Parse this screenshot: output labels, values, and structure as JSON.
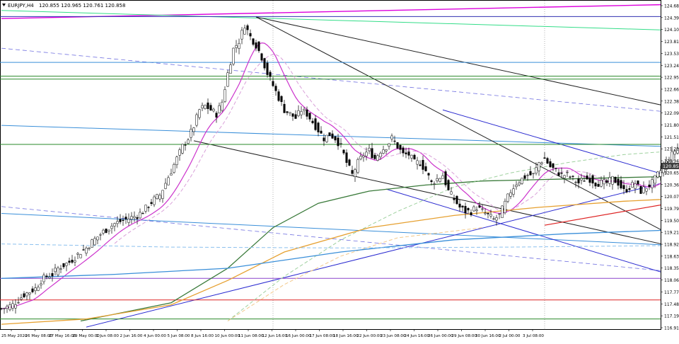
{
  "window": {
    "symbol_label": "EURJPY,H4",
    "ohlc_text": "120.855 120.965 120.761 120.858",
    "menu_icon": "triangle-down-icon"
  },
  "chart_data": {
    "type": "candlestick",
    "symbol": "EURJPY",
    "timeframe": "H4",
    "price_axis": {
      "ylim": [
        116.7,
        124.79
      ],
      "ticks": [
        "124.680",
        "124.395",
        "124.105",
        "123.815",
        "123.530",
        "123.240",
        "122.955",
        "122.665",
        "122.380",
        "122.090",
        "121.800",
        "121.515",
        "121.225",
        "120.940",
        "120.650",
        "120.365",
        "120.075",
        "119.790",
        "119.500",
        "119.210",
        "118.925",
        "118.635",
        "118.350",
        "118.060",
        "117.770",
        "117.480",
        "117.195",
        "116.910"
      ],
      "current_price": "120.858"
    },
    "time_axis": {
      "labels": [
        "25 May 2020",
        "26 May 08:00",
        "27 May 16:00",
        "29 May 00:00",
        "1 Jun 08:00",
        "2 Jun 16:00",
        "4 Jun 00:00",
        "5 Jun 08:00",
        "8 Jun 16:00",
        "10 Jun 00:00",
        "11 Jun 08:00",
        "12 Jun 16:00",
        "16 Jun 00:00",
        "17 Jun 08:00",
        "18 Jun 16:00",
        "22 Jun 00:00",
        "23 Jun 08:00",
        "24 Jun 16:00",
        "26 Jun 00:00",
        "29 Jun 08:00",
        "30 Jun 16:00",
        "2 Jul 00:00",
        "3 Jul 08:00"
      ]
    },
    "candles": {
      "bar_spacing": 4,
      "up_color": "#ffffff",
      "down_color": "#000000",
      "close_path": [
        [
          0,
          117.2
        ],
        [
          4,
          117.3
        ],
        [
          8,
          117.55
        ],
        [
          12,
          117.7
        ],
        [
          14,
          117.9
        ],
        [
          16,
          118.0
        ],
        [
          18,
          118.05
        ],
        [
          20,
          118.2
        ],
        [
          24,
          118.35
        ],
        [
          28,
          118.6
        ],
        [
          30,
          118.7
        ],
        [
          32,
          118.85
        ],
        [
          36,
          119.1
        ],
        [
          40,
          119.3
        ],
        [
          44,
          119.4
        ],
        [
          48,
          119.5
        ],
        [
          50,
          119.6
        ],
        [
          52,
          119.75
        ],
        [
          54,
          119.9
        ],
        [
          56,
          120.0
        ],
        [
          60,
          120.6
        ],
        [
          64,
          121.2
        ],
        [
          66,
          121.4
        ],
        [
          68,
          121.7
        ],
        [
          70,
          122.1
        ],
        [
          72,
          122.2
        ],
        [
          74,
          122.1
        ],
        [
          76,
          122.0
        ],
        [
          78,
          122.3
        ],
        [
          80,
          123.0
        ],
        [
          82,
          123.6
        ],
        [
          84,
          123.8
        ],
        [
          86,
          124.2
        ],
        [
          88,
          123.9
        ],
        [
          90,
          123.7
        ],
        [
          92,
          123.4
        ],
        [
          94,
          123.0
        ],
        [
          96,
          122.7
        ],
        [
          98,
          122.4
        ],
        [
          100,
          122.1
        ],
        [
          102,
          122.0
        ],
        [
          104,
          121.9
        ],
        [
          106,
          122.1
        ],
        [
          108,
          122.0
        ],
        [
          110,
          121.8
        ],
        [
          112,
          121.6
        ],
        [
          114,
          121.4
        ],
        [
          116,
          121.5
        ],
        [
          118,
          121.4
        ],
        [
          120,
          121.2
        ],
        [
          122,
          120.8
        ],
        [
          124,
          120.5
        ],
        [
          126,
          120.8
        ],
        [
          128,
          121.0
        ],
        [
          130,
          121.1
        ],
        [
          132,
          120.9
        ],
        [
          134,
          121.1
        ],
        [
          136,
          121.2
        ],
        [
          138,
          121.4
        ],
        [
          140,
          121.2
        ],
        [
          142,
          121.0
        ],
        [
          144,
          121.0
        ],
        [
          146,
          120.8
        ],
        [
          148,
          120.8
        ],
        [
          150,
          120.6
        ],
        [
          152,
          120.3
        ],
        [
          154,
          120.4
        ],
        [
          156,
          120.5
        ],
        [
          158,
          120.1
        ],
        [
          160,
          119.9
        ],
        [
          162,
          119.7
        ],
        [
          164,
          119.6
        ],
        [
          166,
          119.6
        ],
        [
          168,
          119.7
        ],
        [
          170,
          119.6
        ],
        [
          172,
          119.5
        ],
        [
          174,
          119.4
        ],
        [
          176,
          119.5
        ],
        [
          178,
          119.8
        ],
        [
          180,
          120.1
        ],
        [
          182,
          120.3
        ],
        [
          184,
          120.4
        ],
        [
          186,
          120.5
        ],
        [
          188,
          120.5
        ],
        [
          190,
          120.8
        ],
        [
          192,
          120.9
        ],
        [
          194,
          120.7
        ],
        [
          196,
          120.6
        ],
        [
          198,
          120.5
        ],
        [
          200,
          120.5
        ],
        [
          202,
          120.4
        ],
        [
          204,
          120.3
        ],
        [
          206,
          120.4
        ],
        [
          208,
          120.4
        ],
        [
          210,
          120.3
        ],
        [
          212,
          120.3
        ],
        [
          214,
          120.3
        ],
        [
          216,
          120.4
        ],
        [
          218,
          120.3
        ],
        [
          220,
          120.1
        ],
        [
          222,
          120.2
        ],
        [
          224,
          120.3
        ],
        [
          226,
          120.1
        ],
        [
          228,
          120.2
        ],
        [
          230,
          120.3
        ],
        [
          232,
          120.5
        ],
        [
          234,
          120.7
        ],
        [
          236,
          120.9
        ],
        [
          238,
          121.1
        ],
        [
          240,
          121.2
        ],
        [
          242,
          121.0
        ],
        [
          244,
          120.9
        ],
        [
          246,
          121.0
        ],
        [
          248,
          121.2
        ],
        [
          250,
          121.3
        ],
        [
          252,
          121.1
        ],
        [
          254,
          121.0
        ],
        [
          256,
          121.0
        ],
        [
          258,
          121.0
        ],
        [
          260,
          121.1
        ],
        [
          262,
          121.2
        ],
        [
          264,
          121.2
        ],
        [
          266,
          121.0
        ],
        [
          268,
          120.8
        ],
        [
          270,
          120.7
        ],
        [
          272,
          120.8
        ],
        [
          274,
          120.7
        ],
        [
          276,
          120.6
        ],
        [
          278,
          120.7
        ],
        [
          280,
          120.8
        ],
        [
          282,
          120.86
        ]
      ]
    },
    "indicators": {
      "ma_magenta": {
        "color": "#cc33cc",
        "x_range": [
          0,
          282
        ],
        "smoothing": 12
      },
      "ma_magenta_dash": {
        "color": "#d9a0d9",
        "x_range": [
          40,
          282
        ],
        "smoothing": 18
      },
      "ma_green": {
        "color": "#3a7a3a",
        "points": [
          [
            28,
            116.9
          ],
          [
            60,
            117.35
          ],
          [
            80,
            118.2
          ],
          [
            96,
            119.2
          ],
          [
            112,
            119.8
          ],
          [
            130,
            120.1
          ],
          [
            150,
            120.25
          ],
          [
            170,
            120.35
          ],
          [
            200,
            120.4
          ],
          [
            230,
            120.45
          ],
          [
            260,
            120.5
          ],
          [
            284,
            120.55
          ]
        ]
      },
      "ma_green_dash": {
        "color": "#9fd19f",
        "points": [
          [
            80,
            116.9
          ],
          [
            100,
            118.0
          ],
          [
            120,
            118.9
          ],
          [
            140,
            119.6
          ],
          [
            160,
            120.2
          ],
          [
            180,
            120.55
          ],
          [
            200,
            120.8
          ],
          [
            220,
            121.0
          ],
          [
            240,
            121.1
          ],
          [
            284,
            121.15
          ]
        ]
      },
      "ma_orange": {
        "color": "#e6a030",
        "points": [
          [
            0,
            116.82
          ],
          [
            30,
            116.95
          ],
          [
            60,
            117.3
          ],
          [
            80,
            117.9
          ],
          [
            100,
            118.6
          ],
          [
            130,
            119.2
          ],
          [
            160,
            119.5
          ],
          [
            190,
            119.7
          ],
          [
            220,
            119.85
          ],
          [
            250,
            119.95
          ],
          [
            284,
            120.05
          ]
        ]
      },
      "ma_orange_dash": {
        "color": "#f2c88a",
        "points": [
          [
            80,
            116.9
          ],
          [
            100,
            117.8
          ],
          [
            120,
            118.5
          ],
          [
            140,
            118.95
          ],
          [
            170,
            119.2
          ]
        ]
      },
      "ma_blue": {
        "color": "#3a8fd9",
        "points": [
          [
            0,
            117.95
          ],
          [
            40,
            118.05
          ],
          [
            80,
            118.2
          ],
          [
            120,
            118.6
          ],
          [
            160,
            118.9
          ],
          [
            200,
            119.05
          ],
          [
            240,
            119.15
          ],
          [
            284,
            119.3
          ]
        ]
      },
      "ma_blue_dash": {
        "color": "#8cc0ee",
        "points": [
          [
            0,
            118.8
          ],
          [
            60,
            118.72
          ],
          [
            120,
            118.7
          ],
          [
            180,
            118.72
          ],
          [
            240,
            118.76
          ],
          [
            284,
            118.8
          ]
        ]
      }
    },
    "horizontal_levels": [
      {
        "price": 124.4,
        "color": "#3030b0"
      },
      {
        "price": 123.27,
        "color": "#3a8fd9"
      },
      {
        "price": 122.93,
        "color": "#2a8a2a"
      },
      {
        "price": 122.86,
        "color": "#2a8a2a"
      },
      {
        "price": 121.25,
        "color": "#2a8a2a"
      },
      {
        "price": 117.95,
        "color": "#8a44cc"
      },
      {
        "price": 117.42,
        "color": "#dd2222"
      },
      {
        "price": 116.95,
        "color": "#2a8a2a"
      }
    ],
    "trendlines": [
      {
        "color": "#dd00dd",
        "width": 1.4,
        "from": [
          0,
          124.35
        ],
        "to": [
          300,
          124.79
        ]
      },
      {
        "color": "#33dd88",
        "width": 1.0,
        "from": [
          0,
          124.55
        ],
        "to": [
          360,
          123.81
        ]
      },
      {
        "color": "#7070e0",
        "width": 0.8,
        "dash": true,
        "from": [
          0,
          123.62
        ],
        "to": [
          360,
          121.22
        ]
      },
      {
        "color": "#3a8fd9",
        "width": 1.0,
        "from": [
          0,
          121.72
        ],
        "to": [
          360,
          120.92
        ]
      },
      {
        "color": "#3a8fd9",
        "width": 1.0,
        "from": [
          0,
          119.55
        ],
        "to": [
          360,
          118.36
        ]
      },
      {
        "color": "#7070e0",
        "width": 0.8,
        "dash": true,
        "from": [
          0,
          119.72
        ],
        "to": [
          360,
          117.28
        ]
      },
      {
        "color": "#222222",
        "width": 1.0,
        "from": [
          90,
          124.39
        ],
        "to": [
          360,
          120.3
        ]
      },
      {
        "color": "#222222",
        "width": 1.0,
        "from": [
          90,
          124.39
        ],
        "to": [
          300,
          116.7
        ]
      },
      {
        "color": "#222222",
        "width": 1.0,
        "from": [
          68,
          121.34
        ],
        "to": [
          360,
          116.85
        ]
      },
      {
        "color": "#2a2ad0",
        "width": 1.0,
        "from": [
          156,
          122.1
        ],
        "to": [
          360,
          117.95
        ]
      },
      {
        "color": "#2a2ad0",
        "width": 1.0,
        "from": [
          136,
          120.15
        ],
        "to": [
          300,
          116.7
        ]
      },
      {
        "color": "#2a2ad0",
        "width": 1.0,
        "from": [
          30,
          116.75
        ],
        "to": [
          360,
          122.5
        ]
      },
      {
        "color": "#dd2222",
        "width": 1.2,
        "from": [
          192,
          119.26
        ],
        "to": [
          360,
          121.3
        ]
      },
      {
        "color": "#222222",
        "width": 1.0,
        "from": [
          264,
          120.27
        ],
        "to": [
          360,
          121.87
        ]
      },
      {
        "color": "#222222",
        "width": 1.0,
        "from": [
          264,
          120.27
        ],
        "to": [
          264,
          120.76
        ]
      },
      {
        "color": "#222222",
        "width": 1.0,
        "from": [
          264,
          120.27
        ],
        "to": [
          286,
          120.58
        ]
      }
    ],
    "grid": {
      "vertical_dotted_separators": [
        0,
        48,
        96,
        144,
        192,
        240,
        296
      ],
      "color": "#808080"
    }
  }
}
